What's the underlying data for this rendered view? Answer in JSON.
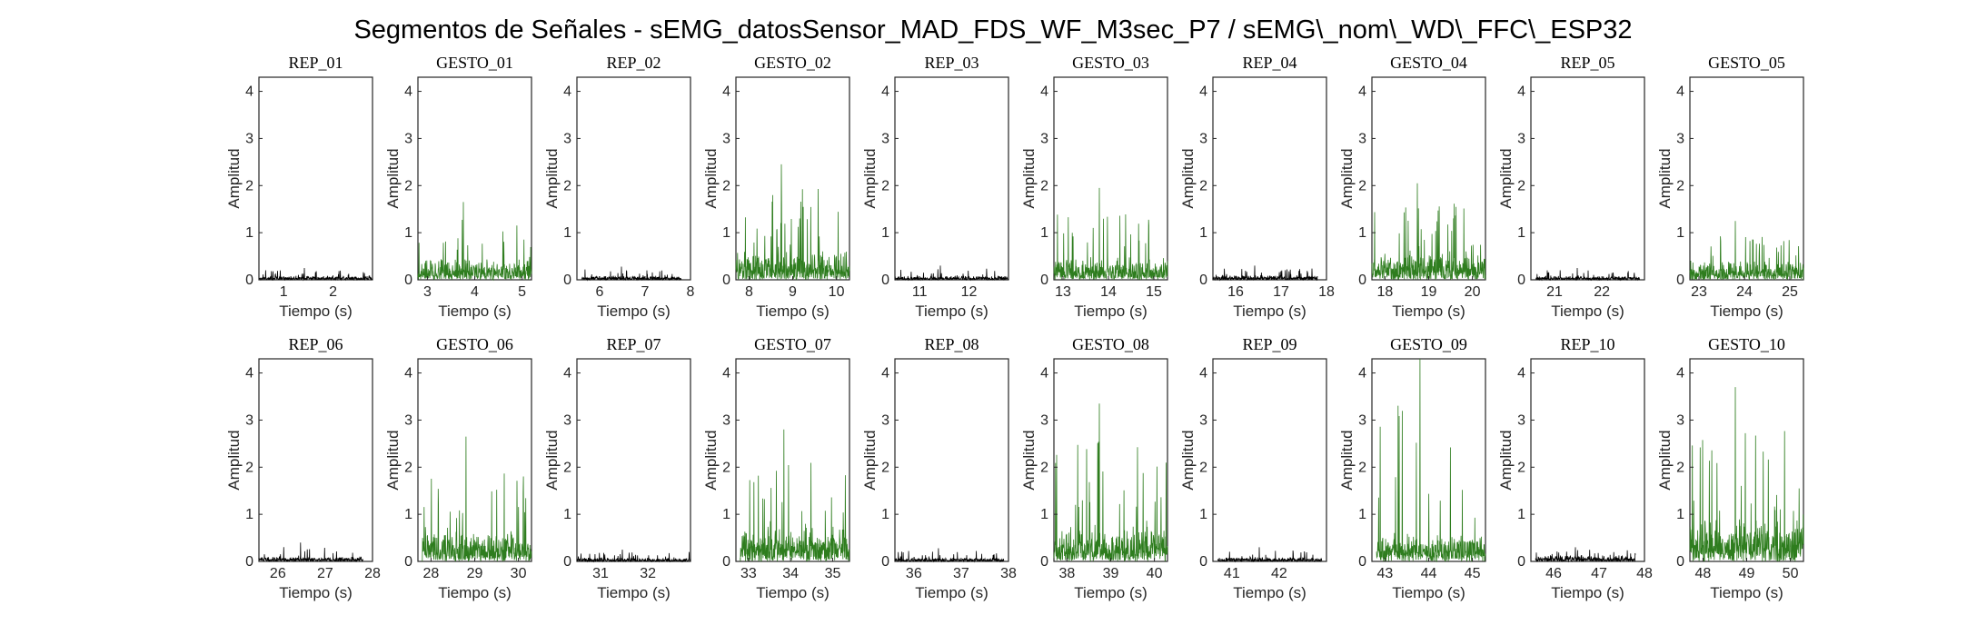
{
  "figure": {
    "title": "Segmentos de Señales - sEMG_datosSensor_MAD_FDS_WF_M3sec_P7 / sEMG\\_nom\\_WD\\_FFC\\_ESP32"
  },
  "colors": {
    "rep": "#000000",
    "gesto": "#2e7d1e",
    "axis": "#262626"
  },
  "chart_data": [
    {
      "type": "line",
      "title": "REP_01",
      "xlabel": "Tiempo (s)",
      "ylabel": "Amplitud",
      "xlim": [
        0.5,
        2.8
      ],
      "ylim": [
        0,
        4.3
      ],
      "xticks": [
        1,
        2
      ],
      "yticks": [
        0,
        1,
        2,
        3,
        4
      ],
      "color": "#000000",
      "signal": {
        "start": 0.5,
        "end": 2.8,
        "base": 0.06,
        "peak": 0.25
      }
    },
    {
      "type": "line",
      "title": "GESTO_01",
      "xlabel": "Tiempo (s)",
      "ylabel": "Amplitud",
      "xlim": [
        2.8,
        5.2
      ],
      "ylim": [
        0,
        4.3
      ],
      "xticks": [
        3,
        4,
        5
      ],
      "yticks": [
        0,
        1,
        2,
        3,
        4
      ],
      "color": "#2e7d1e",
      "signal": {
        "start": 2.8,
        "end": 5.2,
        "base": 0.35,
        "peak": 1.65
      }
    },
    {
      "type": "line",
      "title": "REP_02",
      "xlabel": "Tiempo (s)",
      "ylabel": "Amplitud",
      "xlim": [
        5.5,
        8
      ],
      "ylim": [
        0,
        4.3
      ],
      "xticks": [
        6,
        7,
        8
      ],
      "yticks": [
        0,
        1,
        2,
        3,
        4
      ],
      "color": "#000000",
      "signal": {
        "start": 5.6,
        "end": 7.8,
        "base": 0.06,
        "peak": 0.28
      }
    },
    {
      "type": "line",
      "title": "GESTO_02",
      "xlabel": "Tiempo (s)",
      "ylabel": "Amplitud",
      "xlim": [
        7.7,
        10.3
      ],
      "ylim": [
        0,
        4.3
      ],
      "xticks": [
        8,
        9,
        10
      ],
      "yticks": [
        0,
        1,
        2,
        3,
        4
      ],
      "color": "#2e7d1e",
      "signal": {
        "start": 7.7,
        "end": 10.3,
        "base": 0.45,
        "peak": 2.45
      }
    },
    {
      "type": "line",
      "title": "REP_03",
      "xlabel": "Tiempo (s)",
      "ylabel": "Amplitud",
      "xlim": [
        10.5,
        12.8
      ],
      "ylim": [
        0,
        4.3
      ],
      "xticks": [
        11,
        12
      ],
      "yticks": [
        0,
        1,
        2,
        3,
        4
      ],
      "color": "#000000",
      "signal": {
        "start": 10.5,
        "end": 12.8,
        "base": 0.06,
        "peak": 0.3
      }
    },
    {
      "type": "line",
      "title": "GESTO_03",
      "xlabel": "Tiempo (s)",
      "ylabel": "Amplitud",
      "xlim": [
        12.8,
        15.3
      ],
      "ylim": [
        0,
        4.3
      ],
      "xticks": [
        13,
        14,
        15
      ],
      "yticks": [
        0,
        1,
        2,
        3,
        4
      ],
      "color": "#2e7d1e",
      "signal": {
        "start": 12.8,
        "end": 15.3,
        "base": 0.35,
        "peak": 1.95
      }
    },
    {
      "type": "line",
      "title": "REP_04",
      "xlabel": "Tiempo (s)",
      "ylabel": "Amplitud",
      "xlim": [
        15.5,
        18
      ],
      "ylim": [
        0,
        4.3
      ],
      "xticks": [
        16,
        17,
        18
      ],
      "yticks": [
        0,
        1,
        2,
        3,
        4
      ],
      "color": "#000000",
      "signal": {
        "start": 15.5,
        "end": 17.8,
        "base": 0.07,
        "peak": 0.3
      }
    },
    {
      "type": "line",
      "title": "GESTO_04",
      "xlabel": "Tiempo (s)",
      "ylabel": "Amplitud",
      "xlim": [
        17.7,
        20.3
      ],
      "ylim": [
        0,
        4.3
      ],
      "xticks": [
        18,
        19,
        20
      ],
      "yticks": [
        0,
        1,
        2,
        3,
        4
      ],
      "color": "#2e7d1e",
      "signal": {
        "start": 17.7,
        "end": 20.3,
        "base": 0.4,
        "peak": 2.05
      }
    },
    {
      "type": "line",
      "title": "REP_05",
      "xlabel": "Tiempo (s)",
      "ylabel": "Amplitud",
      "xlim": [
        20.5,
        22.9
      ],
      "ylim": [
        0,
        4.3
      ],
      "xticks": [
        21,
        22
      ],
      "yticks": [
        0,
        1,
        2,
        3,
        4
      ],
      "color": "#000000",
      "signal": {
        "start": 20.6,
        "end": 22.8,
        "base": 0.06,
        "peak": 0.25
      }
    },
    {
      "type": "line",
      "title": "GESTO_05",
      "xlabel": "Tiempo (s)",
      "ylabel": "Amplitud",
      "xlim": [
        22.8,
        25.3
      ],
      "ylim": [
        0,
        4.3
      ],
      "xticks": [
        23,
        24,
        25
      ],
      "yticks": [
        0,
        1,
        2,
        3,
        4
      ],
      "color": "#2e7d1e",
      "signal": {
        "start": 22.8,
        "end": 25.3,
        "base": 0.3,
        "peak": 1.25
      }
    },
    {
      "type": "line",
      "title": "REP_06",
      "xlabel": "Tiempo (s)",
      "ylabel": "Amplitud",
      "xlim": [
        25.6,
        28
      ],
      "ylim": [
        0,
        4.3
      ],
      "xticks": [
        26,
        27,
        28
      ],
      "yticks": [
        0,
        1,
        2,
        3,
        4
      ],
      "color": "#000000",
      "signal": {
        "start": 25.6,
        "end": 27.8,
        "base": 0.08,
        "peak": 0.4
      }
    },
    {
      "type": "line",
      "title": "GESTO_06",
      "xlabel": "Tiempo (s)",
      "ylabel": "Amplitud",
      "xlim": [
        27.7,
        30.3
      ],
      "ylim": [
        0,
        4.3
      ],
      "xticks": [
        28,
        29,
        30
      ],
      "yticks": [
        0,
        1,
        2,
        3,
        4
      ],
      "color": "#2e7d1e",
      "signal": {
        "start": 27.8,
        "end": 30.3,
        "base": 0.5,
        "peak": 2.65
      }
    },
    {
      "type": "line",
      "title": "REP_07",
      "xlabel": "Tiempo (s)",
      "ylabel": "Amplitud",
      "xlim": [
        30.5,
        32.9
      ],
      "ylim": [
        0,
        4.3
      ],
      "xticks": [
        31,
        32
      ],
      "yticks": [
        0,
        1,
        2,
        3,
        4
      ],
      "color": "#000000",
      "signal": {
        "start": 30.5,
        "end": 32.9,
        "base": 0.06,
        "peak": 0.25
      }
    },
    {
      "type": "line",
      "title": "GESTO_07",
      "xlabel": "Tiempo (s)",
      "ylabel": "Amplitud",
      "xlim": [
        32.7,
        35.4
      ],
      "ylim": [
        0,
        4.3
      ],
      "xticks": [
        33,
        34,
        35
      ],
      "yticks": [
        0,
        1,
        2,
        3,
        4
      ],
      "color": "#2e7d1e",
      "signal": {
        "start": 32.8,
        "end": 35.4,
        "base": 0.55,
        "peak": 2.8
      }
    },
    {
      "type": "line",
      "title": "REP_08",
      "xlabel": "Tiempo (s)",
      "ylabel": "Amplitud",
      "xlim": [
        35.6,
        38
      ],
      "ylim": [
        0,
        4.3
      ],
      "xticks": [
        36,
        37,
        38
      ],
      "yticks": [
        0,
        1,
        2,
        3,
        4
      ],
      "color": "#000000",
      "signal": {
        "start": 35.6,
        "end": 37.9,
        "base": 0.06,
        "peak": 0.28
      }
    },
    {
      "type": "line",
      "title": "GESTO_08",
      "xlabel": "Tiempo (s)",
      "ylabel": "Amplitud",
      "xlim": [
        37.7,
        40.3
      ],
      "ylim": [
        0,
        4.3
      ],
      "xticks": [
        38,
        39,
        40
      ],
      "yticks": [
        0,
        1,
        2,
        3,
        4
      ],
      "color": "#2e7d1e",
      "signal": {
        "start": 37.7,
        "end": 40.3,
        "base": 0.55,
        "peak": 3.35
      }
    },
    {
      "type": "line",
      "title": "REP_09",
      "xlabel": "Tiempo (s)",
      "ylabel": "Amplitud",
      "xlim": [
        40.6,
        43
      ],
      "ylim": [
        0,
        4.3
      ],
      "xticks": [
        41,
        42
      ],
      "yticks": [
        0,
        1,
        2,
        3,
        4
      ],
      "color": "#000000",
      "signal": {
        "start": 40.7,
        "end": 42.9,
        "base": 0.07,
        "peak": 0.3
      }
    },
    {
      "type": "line",
      "title": "GESTO_09",
      "xlabel": "Tiempo (s)",
      "ylabel": "Amplitud",
      "xlim": [
        42.7,
        45.3
      ],
      "ylim": [
        0,
        4.3
      ],
      "xticks": [
        43,
        44,
        45
      ],
      "yticks": [
        0,
        1,
        2,
        3,
        4
      ],
      "color": "#2e7d1e",
      "signal": {
        "start": 42.8,
        "end": 45.3,
        "base": 0.45,
        "peak": 4.3
      }
    },
    {
      "type": "line",
      "title": "REP_10",
      "xlabel": "Tiempo (s)",
      "ylabel": "Amplitud",
      "xlim": [
        45.5,
        48
      ],
      "ylim": [
        0,
        4.3
      ],
      "xticks": [
        46,
        47,
        48
      ],
      "yticks": [
        0,
        1,
        2,
        3,
        4
      ],
      "color": "#000000",
      "signal": {
        "start": 45.6,
        "end": 47.8,
        "base": 0.1,
        "peak": 0.3
      }
    },
    {
      "type": "line",
      "title": "GESTO_10",
      "xlabel": "Tiempo (s)",
      "ylabel": "Amplitud",
      "xlim": [
        47.7,
        50.3
      ],
      "ylim": [
        0,
        4.3
      ],
      "xticks": [
        48,
        49,
        50
      ],
      "yticks": [
        0,
        1,
        2,
        3,
        4
      ],
      "color": "#2e7d1e",
      "signal": {
        "start": 47.7,
        "end": 50.3,
        "base": 0.7,
        "peak": 3.7
      }
    }
  ]
}
